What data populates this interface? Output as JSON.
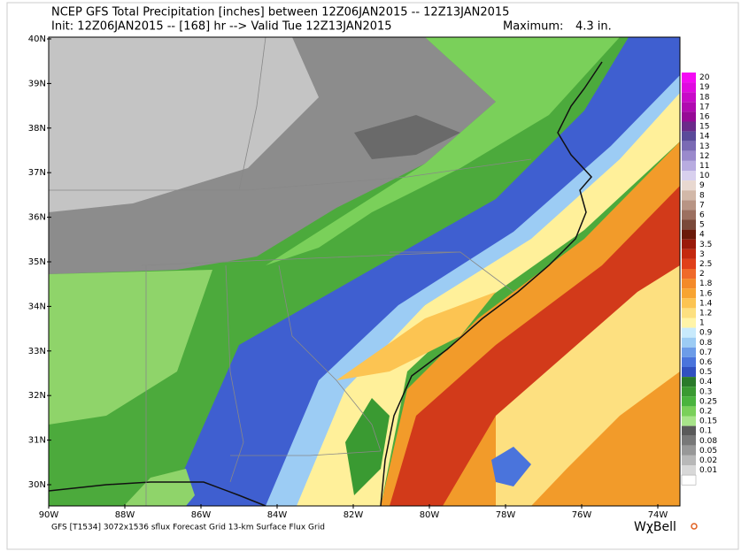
{
  "header": {
    "title": "NCEP GFS Total Precipitation [inches] between 12Z06JAN2015 -- 12Z13JAN2015",
    "subtitle": "Init: 12Z06JAN2015 -- [168] hr --> Valid Tue 12Z13JAN2015",
    "maximum_label": "Maximum:",
    "maximum_value": "4.3 in."
  },
  "lat_labels": [
    "40N",
    "39N",
    "38N",
    "37N",
    "36N",
    "35N",
    "34N",
    "33N",
    "32N",
    "31N",
    "30N"
  ],
  "lon_labels": [
    "90W",
    "88W",
    "86W",
    "84W",
    "82W",
    "80W",
    "78W",
    "76W",
    "74W"
  ],
  "legend": {
    "entries": [
      {
        "label": "20",
        "color": "#f40af4"
      },
      {
        "label": "19",
        "color": "#e00ae0"
      },
      {
        "label": "18",
        "color": "#c80ac8"
      },
      {
        "label": "17",
        "color": "#b00ab0"
      },
      {
        "label": "16",
        "color": "#960a96"
      },
      {
        "label": "15",
        "color": "#6a2a8a"
      },
      {
        "label": "14",
        "color": "#5a4a9a"
      },
      {
        "label": "13",
        "color": "#7a6ab4"
      },
      {
        "label": "12",
        "color": "#9a8acc"
      },
      {
        "label": "11",
        "color": "#b8ace0"
      },
      {
        "label": "10",
        "color": "#d8d0ee"
      },
      {
        "label": "9",
        "color": "#e8d8d0"
      },
      {
        "label": "8",
        "color": "#d2b8a8"
      },
      {
        "label": "7",
        "color": "#b89484"
      },
      {
        "label": "6",
        "color": "#9c7060"
      },
      {
        "label": "5",
        "color": "#7a4a3a"
      },
      {
        "label": "4",
        "color": "#6a1a0a"
      },
      {
        "label": "3.5",
        "color": "#9a1a0a"
      },
      {
        "label": "3",
        "color": "#c4280e"
      },
      {
        "label": "2.5",
        "color": "#e0401a"
      },
      {
        "label": "2",
        "color": "#f06a2a"
      },
      {
        "label": "1.8",
        "color": "#f48a2a"
      },
      {
        "label": "1.6",
        "color": "#f8a432"
      },
      {
        "label": "1.4",
        "color": "#fcc452"
      },
      {
        "label": "1.2",
        "color": "#fde080"
      },
      {
        "label": "1",
        "color": "#fff4a8"
      },
      {
        "label": "0.9",
        "color": "#c8eafc"
      },
      {
        "label": "0.8",
        "color": "#9cccf4"
      },
      {
        "label": "0.7",
        "color": "#6c9ce8"
      },
      {
        "label": "0.6",
        "color": "#4a74dc"
      },
      {
        "label": "0.5",
        "color": "#3050c0"
      },
      {
        "label": "0.4",
        "color": "#2a7a2a"
      },
      {
        "label": "0.3",
        "color": "#3a9a32"
      },
      {
        "label": "0.25",
        "color": "#4ab43e"
      },
      {
        "label": "0.2",
        "color": "#7ad05a"
      },
      {
        "label": "0.15",
        "color": "#a8e48a"
      },
      {
        "label": "0.1",
        "color": "#5a5a5a"
      },
      {
        "label": "0.08",
        "color": "#787878"
      },
      {
        "label": "0.05",
        "color": "#989898"
      },
      {
        "label": "0.02",
        "color": "#b8b8b8"
      },
      {
        "label": "0.01",
        "color": "#d8d8d8"
      }
    ]
  },
  "footer": {
    "caption": "GFS [T1534] 3072x1536 sflux Forecast Grid 13-km Surface Flux Grid",
    "logo": "WχBell"
  }
}
